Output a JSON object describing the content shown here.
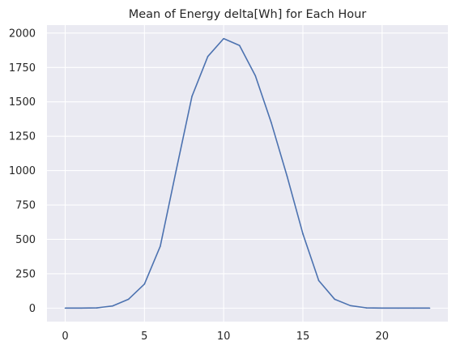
{
  "chart_data": {
    "type": "line",
    "title": "Mean of Energy delta[Wh] for Each Hour",
    "xlabel": "",
    "ylabel": "",
    "xlim": [
      -1.15,
      24.15
    ],
    "ylim": [
      -98,
      2058
    ],
    "x_ticks": [
      0,
      5,
      10,
      15,
      20
    ],
    "y_ticks": [
      0,
      250,
      500,
      750,
      1000,
      1250,
      1500,
      1750,
      2000
    ],
    "grid": true,
    "background": "#eaeaf2",
    "grid_color": "#ffffff",
    "series": [
      {
        "color": "#4c72b0",
        "x": [
          0,
          1,
          2,
          3,
          4,
          5,
          6,
          7,
          8,
          9,
          10,
          11,
          12,
          13,
          14,
          15,
          16,
          17,
          18,
          19,
          20,
          21,
          22,
          23
        ],
        "values": [
          0,
          0,
          2,
          16,
          65,
          175,
          450,
          1000,
          1540,
          1830,
          1960,
          1910,
          1690,
          1350,
          960,
          540,
          200,
          65,
          18,
          2,
          0,
          0,
          0,
          0
        ]
      }
    ]
  }
}
